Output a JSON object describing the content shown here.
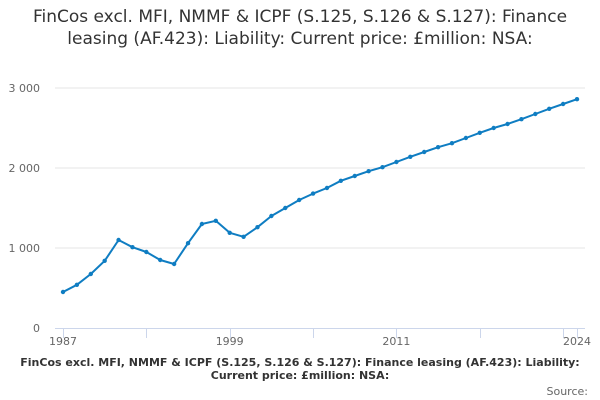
{
  "chart_data": {
    "type": "line",
    "title": "FinCos excl. MFI, NMMF & ICPF (S.125, S.126 & S.127): Finance leasing (AF.423): Liability: Current price: £million: NSA:",
    "xlabel": "",
    "ylabel": "",
    "x": [
      1987,
      1988,
      1989,
      1990,
      1991,
      1992,
      1993,
      1994,
      1995,
      1996,
      1997,
      1998,
      1999,
      2000,
      2001,
      2002,
      2003,
      2004,
      2005,
      2006,
      2007,
      2008,
      2009,
      2010,
      2011,
      2012,
      2013,
      2014,
      2015,
      2016,
      2017,
      2018,
      2019,
      2020,
      2021,
      2022,
      2023,
      2024
    ],
    "series": [
      {
        "name": "FinCos excl. MFI, NMMF & ICPF (S.125, S.126 & S.127): Finance leasing (AF.423): Liability: Current price: £million: NSA:",
        "values": [
          450,
          540,
          675,
          840,
          1100,
          1010,
          950,
          850,
          800,
          1060,
          1300,
          1340,
          1190,
          1140,
          1260,
          1400,
          1500,
          1600,
          1680,
          1750,
          1840,
          1900,
          1960,
          2010,
          2075,
          2140,
          2200,
          2260,
          2310,
          2375,
          2440,
          2500,
          2550,
          2610,
          2675,
          2740,
          2800,
          2860
        ]
      }
    ],
    "ylim": [
      0,
      3000
    ],
    "xlim": [
      1987,
      2024
    ],
    "y_ticks": [
      {
        "v": 0,
        "label": "0"
      },
      {
        "v": 1000,
        "label": "1 000"
      },
      {
        "v": 2000,
        "label": "2 000"
      },
      {
        "v": 3000,
        "label": "3 000"
      }
    ],
    "x_tick_labels": [
      {
        "v": 1987,
        "label": "1987"
      },
      {
        "v": 1999,
        "label": "1999"
      },
      {
        "v": 2011,
        "label": "2011"
      },
      {
        "v": 2024,
        "label": "2024"
      }
    ],
    "grid": true,
    "legend": "bottom",
    "color": "#0f7dc2"
  },
  "source_label": "Source:"
}
